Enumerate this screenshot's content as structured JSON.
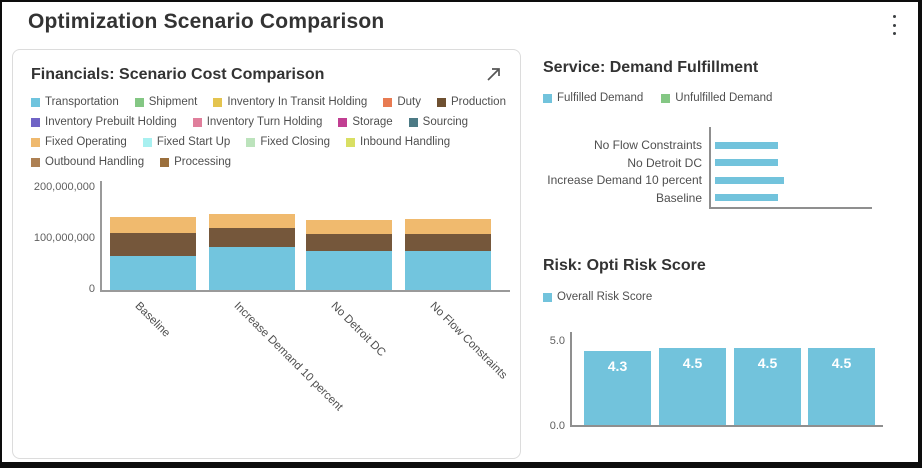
{
  "header": {
    "title": "Optimization Scenario Comparison"
  },
  "financials": {
    "title": "Financials: Scenario Cost Comparison",
    "legend_rows": [
      [
        {
          "label": "Transportation",
          "color": "#6FC4DE"
        },
        {
          "label": "Shipment",
          "color": "#84C784"
        },
        {
          "label": "Inventory In Transit Holding",
          "color": "#E4C44F"
        },
        {
          "label": "Duty",
          "color": "#E87B52"
        },
        {
          "label": "Production",
          "color": "#6E5031"
        }
      ],
      [
        {
          "label": "Inventory Prebuilt Holding",
          "color": "#7064C6"
        },
        {
          "label": "Inventory Turn Holding",
          "color": "#E07F9C"
        },
        {
          "label": "Storage",
          "color": "#C13F92"
        },
        {
          "label": "Sourcing",
          "color": "#4C7A85"
        }
      ],
      [
        {
          "label": "Fixed Operating",
          "color": "#EFB96E"
        },
        {
          "label": "Fixed Start Up",
          "color": "#A8F0F0"
        },
        {
          "label": "Fixed Closing",
          "color": "#BCE3BC"
        },
        {
          "label": "Inbound Handling",
          "color": "#D9DF63"
        }
      ],
      [
        {
          "label": "Outbound Handling",
          "color": "#AD8053"
        },
        {
          "label": "Processing",
          "color": "#9B6F3C"
        }
      ]
    ]
  },
  "service": {
    "title": "Service: Demand Fulfillment",
    "legend": [
      {
        "label": "Fulfilled Demand",
        "color": "#72C3DC"
      },
      {
        "label": "Unfulfilled Demand",
        "color": "#84C784"
      }
    ]
  },
  "risk": {
    "title": "Risk: Opti Risk Score",
    "legend": [
      {
        "label": "Overall Risk Score",
        "color": "#72C3DC"
      }
    ]
  },
  "chart_data": [
    {
      "type": "bar",
      "subtype": "stacked-vertical",
      "title": "Financials: Scenario Cost Comparison",
      "categories": [
        "Baseline",
        "Increase Demand 10 percent",
        "No Detroit DC",
        "No Flow Constraints"
      ],
      "series": [
        {
          "name": "Transportation",
          "color": "#72C5DE",
          "values": [
            66000000,
            84000000,
            77000000,
            76000000
          ]
        },
        {
          "name": "Production",
          "color": "#75573B",
          "values": [
            45000000,
            38000000,
            32000000,
            34000000
          ]
        },
        {
          "name": "Fixed Operating",
          "color": "#F0BA6E",
          "values": [
            33000000,
            28000000,
            28000000,
            29000000
          ]
        }
      ],
      "ylim": [
        0,
        200000000
      ],
      "yticks": [
        0,
        100000000,
        200000000
      ],
      "ytick_labels": [
        "0",
        "100,000,000",
        "200,000,000"
      ],
      "grid": false,
      "legend_position": "top",
      "values_are_estimates": true
    },
    {
      "type": "bar",
      "subtype": "stacked-horizontal",
      "title": "Service: Demand Fulfillment",
      "categories": [
        "No Flow Constraints",
        "No Detroit DC",
        "Increase Demand 10 percent",
        "Baseline"
      ],
      "series": [
        {
          "name": "Fulfilled Demand",
          "color": "#72C3DC",
          "values": [
            100,
            100,
            110,
            100
          ]
        },
        {
          "name": "Unfulfilled Demand",
          "color": "#84C784",
          "values": [
            0,
            0,
            0,
            0
          ]
        }
      ],
      "xlim": [
        0,
        250
      ],
      "x_tick_labels_visible": false,
      "grid": false,
      "legend_position": "top",
      "values_are_estimates": true
    },
    {
      "type": "bar",
      "subtype": "vertical",
      "title": "Risk: Opti Risk Score",
      "series_name": "Overall Risk Score",
      "color": "#72C3DC",
      "values": [
        4.3,
        4.5,
        4.5,
        4.5
      ],
      "bar_labels": [
        "4.3",
        "4.5",
        "4.5",
        "4.5"
      ],
      "categories_visible": false,
      "ylim": [
        0,
        5
      ],
      "yticks": [
        0,
        5
      ],
      "ytick_labels": [
        "0.0",
        "5.0"
      ],
      "grid": false,
      "legend_position": "top"
    }
  ]
}
